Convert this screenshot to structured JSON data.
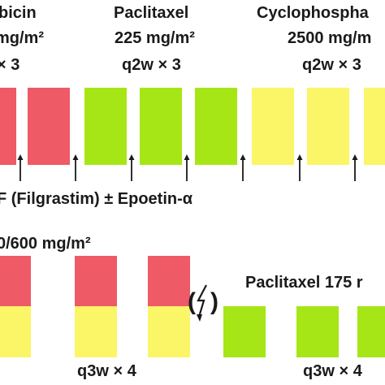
{
  "arm1": {
    "drug1": {
      "name": "bicin",
      "dose": "mg/m²",
      "schedule": "× 3"
    },
    "drug2": {
      "name": "Paclitaxel",
      "dose": "225 mg/m²",
      "schedule": "q2w × 3"
    },
    "drug3": {
      "name": "Cyclophospha",
      "dose": "2500 mg/m",
      "schedule": "q2w × 3"
    },
    "support": "F (Filgrastim) ± Epoetin-α"
  },
  "arm2": {
    "combo_dose": "0/600 mg/m²",
    "paclitaxel_label": "Paclitaxel 175 r",
    "crossover_symbol": "(ϟ)",
    "schedule_left": "q3w × 4",
    "schedule_right": "q3w × 4"
  },
  "colors": {
    "epirubicin": "#ee5a66",
    "paclitaxel": "#a6e616",
    "cyclophosphamide": "#fbf568"
  },
  "icons": [
    "up-arrow-icon",
    "lightning-icon"
  ]
}
